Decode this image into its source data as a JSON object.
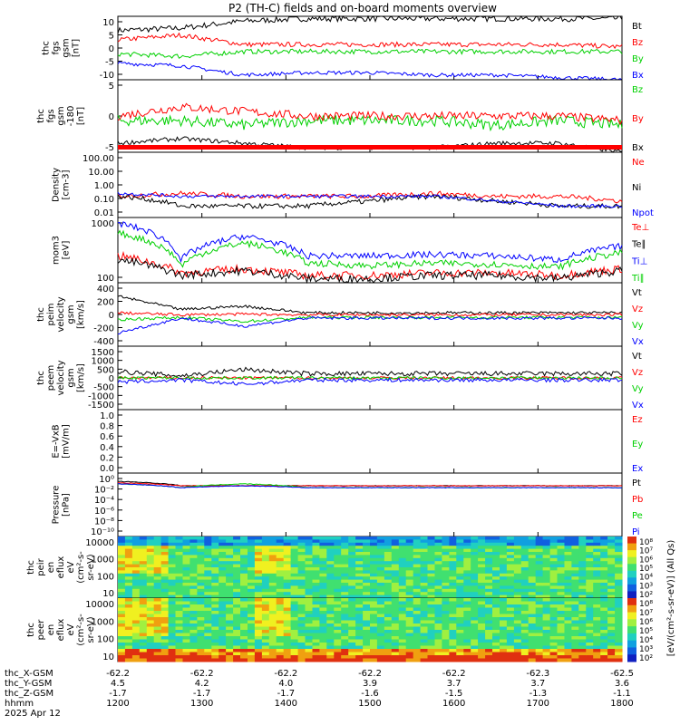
{
  "title": "P2 (TH-C) fields and on-board moments overview",
  "colors": {
    "black": "#000000",
    "red": "#ff0000",
    "green": "#00d000",
    "blue": "#0000ff",
    "cyan": "#00a0a0"
  },
  "chart_data": [
    {
      "type": "line",
      "ylabel": [
        "thc",
        "fgs",
        "gsm",
        "[nT]"
      ],
      "yticks": [
        "10",
        "5",
        "0",
        "-5",
        "-10"
      ],
      "ylim": [
        -13,
        14
      ],
      "series": [
        {
          "name": "Bt",
          "color": "#000000",
          "level": [
            8,
            9,
            12,
            13,
            13,
            13,
            13,
            13,
            13
          ],
          "noise": 0.6
        },
        {
          "name": "Bz",
          "color": "#ff0000",
          "level": [
            4,
            6,
            2,
            2,
            2,
            2,
            2,
            2,
            1
          ],
          "noise": 0.5
        },
        {
          "name": "By",
          "color": "#00d000",
          "level": [
            -2,
            -3,
            -1,
            -1,
            -1,
            -1,
            -1,
            -1,
            -1
          ],
          "noise": 0.5
        },
        {
          "name": "Bx",
          "color": "#0000ff",
          "level": [
            -6,
            -7,
            -11,
            -10,
            -10,
            -11,
            -11,
            -12,
            -13
          ],
          "noise": 0.4
        }
      ]
    },
    {
      "type": "line",
      "ylabel": [
        "thc",
        "fgs",
        "gsm",
        "-180",
        "[nT]"
      ],
      "yticks": [
        "5",
        "0",
        "-5"
      ],
      "ylim": [
        -8,
        8
      ],
      "series": [
        {
          "name": "Bz",
          "color": "#00d000",
          "level": [
            -1,
            -1,
            -2,
            -1,
            -1,
            -1,
            -2,
            -1,
            -2
          ],
          "noise": 1.0
        },
        {
          "name": "By",
          "color": "#ff0000",
          "level": [
            0,
            2,
            1,
            0,
            0,
            0,
            0,
            0,
            -1
          ],
          "noise": 0.8
        },
        {
          "name": "Bx",
          "color": "#000000",
          "level": [
            -6,
            -5,
            -6,
            -7,
            -7,
            -7,
            -6,
            -6,
            -8
          ],
          "noise": 0.4
        }
      ],
      "bar_color": "#ff0000"
    },
    {
      "type": "line",
      "ylabel": [
        "Density",
        "[cm-3]"
      ],
      "yticks": [
        "100.00",
        "10.00",
        "1.00",
        "0.10",
        "0.01"
      ],
      "log": true,
      "ylim": [
        0.01,
        100
      ],
      "series": [
        {
          "name": "Ne",
          "color": "#ff0000",
          "level": [
            0.2,
            0.3,
            0.2,
            0.2,
            0.2,
            0.3,
            0.2,
            0.2,
            0.1
          ],
          "noise": 0.3
        },
        {
          "name": "Ni",
          "color": "#000000",
          "level": [
            0.2,
            0.05,
            0.05,
            0.05,
            0.1,
            0.2,
            0.1,
            0.05,
            0.05
          ],
          "noise": 0.3
        },
        {
          "name": "Npot",
          "color": "#0000ff",
          "level": [
            0.3,
            0.2,
            0.2,
            0.2,
            0.2,
            0.2,
            0.1,
            0.05,
            0.05
          ],
          "noise": 0.2
        }
      ]
    },
    {
      "type": "line",
      "ylabel": [
        "mom3",
        "[eV]"
      ],
      "yticks": [
        "1000",
        "100"
      ],
      "log": true,
      "ylim": [
        30,
        3000
      ],
      "series": [
        {
          "name": "Te⊥",
          "color": "#ff0000",
          "level": [
            200,
            60,
            80,
            50,
            50,
            60,
            60,
            50,
            80
          ],
          "noise": 0.25
        },
        {
          "name": "Te∥",
          "color": "#000000",
          "level": [
            150,
            50,
            70,
            40,
            40,
            50,
            50,
            40,
            70
          ],
          "noise": 0.25
        },
        {
          "name": "Ti⊥",
          "color": "#0000ff",
          "level": [
            2000,
            150,
            800,
            200,
            200,
            220,
            200,
            150,
            400
          ],
          "noise": 0.2
        },
        {
          "name": "Ti∥",
          "color": "#00d000",
          "level": [
            1000,
            100,
            500,
            120,
            100,
            120,
            110,
            90,
            250
          ],
          "noise": 0.2
        }
      ]
    },
    {
      "type": "line",
      "ylabel": [
        "thc",
        "peim",
        "velocity",
        "gsm",
        "[km/s]"
      ],
      "yticks": [
        "400",
        "200",
        "0",
        "-200",
        "-400"
      ],
      "ylim": [
        -450,
        500
      ],
      "series": [
        {
          "name": "Vt",
          "color": "#000000",
          "level": [
            300,
            100,
            150,
            50,
            50,
            50,
            50,
            50,
            50
          ],
          "noise": 0.3
        },
        {
          "name": "Vz",
          "color": "#ff0000",
          "level": [
            50,
            20,
            30,
            20,
            20,
            20,
            20,
            20,
            20
          ],
          "noise": 0.3
        },
        {
          "name": "Vy",
          "color": "#00d000",
          "level": [
            -50,
            -20,
            -80,
            -20,
            -20,
            -20,
            -20,
            -20,
            -20
          ],
          "noise": 0.3
        },
        {
          "name": "Vx",
          "color": "#0000ff",
          "level": [
            -250,
            -30,
            -150,
            -30,
            -30,
            -30,
            -30,
            -30,
            -30
          ],
          "noise": 0.3
        }
      ]
    },
    {
      "type": "line",
      "ylabel": [
        "thc",
        "peem",
        "velocity",
        "gsm",
        "[km/s]"
      ],
      "yticks": [
        "1500",
        "1000",
        "500",
        "0",
        "-500",
        "-1000",
        "-1500"
      ],
      "ylim": [
        -1500,
        1500
      ],
      "series": [
        {
          "name": "Vt",
          "color": "#000000",
          "level": [
            300,
            100,
            400,
            200,
            200,
            200,
            200,
            200,
            200
          ],
          "noise": 0.5
        },
        {
          "name": "Vz",
          "color": "#ff0000",
          "level": [
            0,
            0,
            0,
            0,
            0,
            0,
            0,
            0,
            0
          ],
          "noise": 0.3
        },
        {
          "name": "Vy",
          "color": "#00d000",
          "level": [
            0,
            0,
            0,
            0,
            0,
            0,
            0,
            0,
            0
          ],
          "noise": 0.3
        },
        {
          "name": "Vx",
          "color": "#0000ff",
          "level": [
            -200,
            -100,
            -300,
            -100,
            -100,
            -100,
            -100,
            -100,
            -100
          ],
          "noise": 0.4
        }
      ]
    },
    {
      "type": "line",
      "ylabel": [
        "E=-VxB",
        "[mV/m]"
      ],
      "yticks": [
        "1.0",
        "0.8",
        "0.6",
        "0.4",
        "0.2",
        "0.0"
      ],
      "ylim": [
        0,
        1
      ],
      "series": [
        {
          "name": "Ez",
          "color": "#ff0000",
          "level": [],
          "noise": 0
        },
        {
          "name": "Ey",
          "color": "#00d000",
          "level": [],
          "noise": 0
        },
        {
          "name": "Ex",
          "color": "#0000ff",
          "level": [],
          "noise": 0
        }
      ]
    },
    {
      "type": "line",
      "ylabel": [
        "Pressure",
        "[nPa]"
      ],
      "yticks": [
        "10⁰",
        "10⁻²",
        "10⁻⁴",
        "10⁻⁶",
        "10⁻⁸",
        "10⁻¹⁰"
      ],
      "log": true,
      "ylim": [
        1e-10,
        1
      ],
      "series": [
        {
          "name": "Pt",
          "color": "#000000",
          "level": [
            0.05,
            0.01,
            0.01,
            0.01,
            0.01,
            0.01,
            0.01,
            0.01,
            0.01
          ],
          "noise": 0.1
        },
        {
          "name": "Pb",
          "color": "#ff0000",
          "level": [
            0.03,
            0.01,
            0.01,
            0.01,
            0.01,
            0.01,
            0.01,
            0.01,
            0.01
          ],
          "noise": 0.1
        },
        {
          "name": "Pe",
          "color": "#00d000",
          "level": [
            0.02,
            0.005,
            0.02,
            0.005,
            0.005,
            0.005,
            0.005,
            0.005,
            0.005
          ],
          "noise": 0.1
        },
        {
          "name": "Pi",
          "color": "#0000ff",
          "level": [
            0.02,
            0.005,
            0.01,
            0.005,
            0.005,
            0.005,
            0.005,
            0.005,
            0.005
          ],
          "noise": 0.1
        }
      ]
    },
    {
      "type": "heatmap",
      "ylabel": [
        "thc",
        "peir",
        "en",
        "eflux",
        "eV",
        "(cm²-s-",
        "sr-eV)"
      ],
      "yticks": [
        "10000",
        "1000",
        "100",
        "10"
      ],
      "log": true,
      "ylim": [
        5,
        30000
      ]
    },
    {
      "type": "heatmap",
      "ylabel": [
        "thc",
        "peer",
        "en",
        "eflux",
        "eV",
        "(cm²-s-",
        "sr-eV)"
      ],
      "yticks": [
        "10000",
        "1000",
        "100",
        "10"
      ],
      "log": true,
      "ylim": [
        5,
        30000
      ]
    }
  ],
  "colorbar": {
    "ticks_top": [
      "10⁸",
      "10⁷",
      "10⁶",
      "10⁵",
      "10⁴",
      "10³",
      "10²"
    ],
    "ticks_bottom": [
      "10⁸",
      "10⁷",
      "10⁶",
      "10⁵",
      "10⁴",
      "10³",
      "10²"
    ],
    "label": "[eV/(cm²-s-sr-eV)] (All Qs)"
  },
  "xaxis": {
    "rows": [
      {
        "name": "thc_X-GSM",
        "values": [
          "-62.2",
          "-62.2",
          "-62.2",
          "-62.2",
          "-62.2",
          "-62.3",
          "-62.5"
        ]
      },
      {
        "name": "thc_Y-GSM",
        "values": [
          "4.5",
          "4.2",
          "4.0",
          "3.9",
          "3.7",
          "3.7",
          "3.6"
        ]
      },
      {
        "name": "thc_Z-GSM",
        "values": [
          "-1.7",
          "-1.7",
          "-1.7",
          "-1.6",
          "-1.5",
          "-1.3",
          "-1.1"
        ]
      },
      {
        "name": "hhmm",
        "values": [
          "1200",
          "1300",
          "1400",
          "1500",
          "1600",
          "1700",
          "1800"
        ]
      }
    ],
    "date": "2025 Apr 12"
  }
}
